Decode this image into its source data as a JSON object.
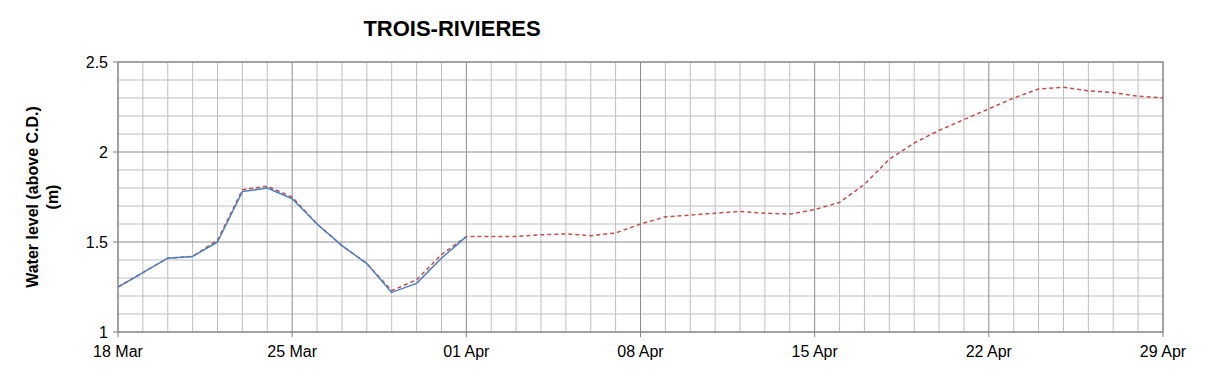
{
  "chart_data": {
    "type": "line",
    "title": "TROIS-RIVIERES",
    "y_label": "Water level (above C.D.)\n(m)",
    "categories": [
      "18 Mar",
      null,
      null,
      null,
      null,
      null,
      null,
      "25 Mar",
      null,
      null,
      null,
      null,
      null,
      null,
      "01 Apr",
      null,
      null,
      null,
      null,
      null,
      null,
      "08 Apr",
      null,
      null,
      null,
      null,
      null,
      null,
      "15 Apr",
      null,
      null,
      null,
      null,
      null,
      null,
      "22 Apr",
      null,
      null,
      null,
      null,
      null,
      null,
      "29 Apr"
    ],
    "series": [
      {
        "color": "#c0504d",
        "line_style": "dashed",
        "values": [
          1.25,
          1.33,
          1.41,
          1.42,
          1.51,
          1.79,
          1.81,
          1.75,
          1.6,
          1.48,
          1.38,
          1.23,
          1.29,
          1.43,
          1.53,
          1.53,
          1.53,
          1.54,
          1.545,
          1.535,
          1.55,
          1.6,
          1.64,
          1.65,
          1.66,
          1.67,
          1.66,
          1.655,
          1.68,
          1.72,
          1.82,
          1.96,
          2.05,
          2.12,
          2.18,
          2.24,
          2.3,
          2.35,
          2.36,
          2.34,
          2.33,
          2.31,
          2.3
        ]
      },
      {
        "color": "#4f81bd",
        "line_style": "solid",
        "values": [
          1.25,
          1.33,
          1.41,
          1.42,
          1.5,
          1.78,
          1.8,
          1.74,
          1.6,
          1.48,
          1.38,
          1.22,
          1.27,
          1.41,
          1.53,
          null,
          null,
          null,
          null,
          null,
          null,
          null,
          null,
          null,
          null,
          null,
          null,
          null,
          null,
          null,
          null,
          null,
          null,
          null,
          null,
          null,
          null,
          null,
          null,
          null,
          null,
          null,
          null
        ]
      }
    ],
    "ylim": [
      1,
      2.5
    ],
    "yticks": [
      1,
      1.5,
      2,
      2.5
    ],
    "grid": true
  }
}
